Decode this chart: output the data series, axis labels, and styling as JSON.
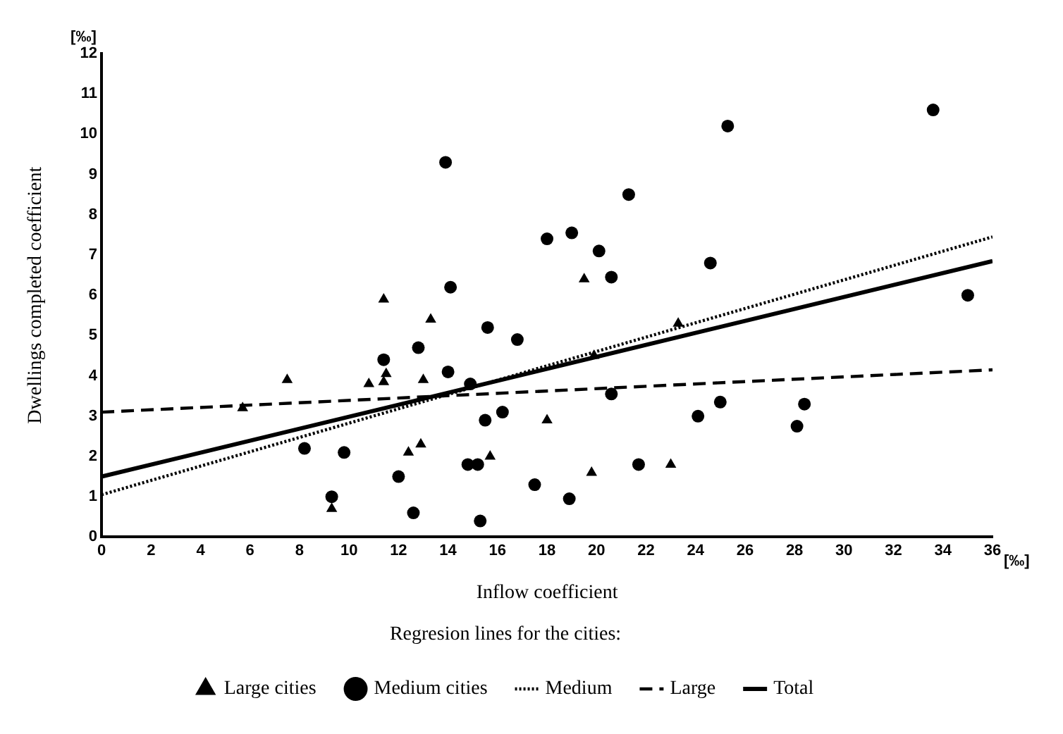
{
  "chart_data": {
    "type": "scatter",
    "xlabel": "Inflow coefficient",
    "ylabel": "Dwellings completed coefficient",
    "legend_title": "Regresion lines for the cities:",
    "annotations": [
      "[‰]",
      "[‰]"
    ],
    "xlim": [
      0,
      36
    ],
    "xticks": [
      0,
      2,
      4,
      6,
      8,
      10,
      12,
      14,
      16,
      18,
      20,
      22,
      24,
      26,
      28,
      30,
      32,
      34,
      36
    ],
    "ylim": [
      0,
      12
    ],
    "yticks": [
      0,
      1,
      2,
      3,
      4,
      5,
      6,
      7,
      8,
      9,
      10,
      11,
      12
    ],
    "grid": false,
    "legend": "bottom",
    "series": [
      {
        "name": "Large cities",
        "type": "scatter",
        "marker": "triangle",
        "color": "#000000",
        "x": [
          5.7,
          7.5,
          9.3,
          10.8,
          11.4,
          11.4,
          11.5,
          12.4,
          12.9,
          13.0,
          13.3,
          15.7,
          18.0,
          19.5,
          19.8,
          19.9,
          23.0,
          23.3
        ],
        "values": [
          3.2,
          3.9,
          0.7,
          3.8,
          5.9,
          3.85,
          4.05,
          2.1,
          2.3,
          3.9,
          5.4,
          2.0,
          2.9,
          6.4,
          1.6,
          4.5,
          1.8,
          5.3
        ]
      },
      {
        "name": "Medium cities",
        "type": "scatter",
        "marker": "circle",
        "color": "#000000",
        "x": [
          8.2,
          9.8,
          9.3,
          11.4,
          12.8,
          12.0,
          12.6,
          13.9,
          14.1,
          14.0,
          14.9,
          15.6,
          16.8,
          15.5,
          16.2,
          14.8,
          15.2,
          15.3,
          17.5,
          18.9,
          18.0,
          19.0,
          20.1,
          20.6,
          21.3,
          20.6,
          21.7,
          24.1,
          25.0,
          24.6,
          25.3,
          33.6,
          35.0,
          28.4,
          28.1
        ],
        "values": [
          2.2,
          2.1,
          1.0,
          4.4,
          4.7,
          1.5,
          0.6,
          9.3,
          6.2,
          4.1,
          3.8,
          5.2,
          4.9,
          2.9,
          3.1,
          1.8,
          1.8,
          0.4,
          1.3,
          0.95,
          7.4,
          7.55,
          7.1,
          6.45,
          8.5,
          3.55,
          1.8,
          3.0,
          3.35,
          6.8,
          10.2,
          10.6,
          6.0,
          3.3,
          2.75
        ]
      },
      {
        "name": "Medium",
        "type": "line",
        "line_style": "dotted",
        "marker": "none",
        "color": "#000000",
        "x": [
          0,
          36
        ],
        "values": [
          1.05,
          7.45
        ]
      },
      {
        "name": "Large",
        "type": "line",
        "line_style": "dashed",
        "marker": "none",
        "color": "#000000",
        "x": [
          0,
          36
        ],
        "values": [
          3.1,
          4.15
        ]
      },
      {
        "name": "Total",
        "type": "line",
        "line_style": "solid",
        "marker": "none",
        "color": "#000000",
        "x": [
          0,
          36
        ],
        "values": [
          1.5,
          6.85
        ]
      }
    ]
  }
}
